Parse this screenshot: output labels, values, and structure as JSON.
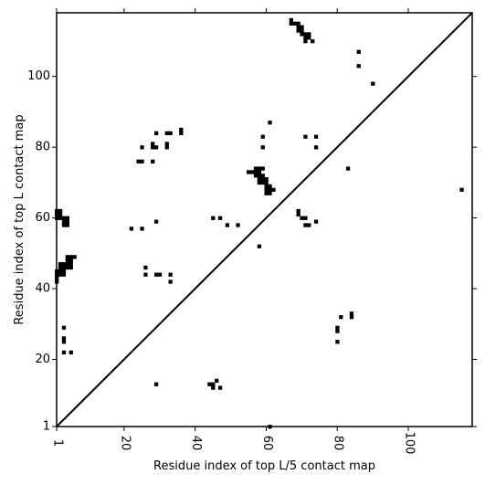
{
  "chart_data": {
    "type": "heatmap",
    "title": "",
    "xlabel": "Residue index of top L/5 contact map",
    "ylabel": "Residue index of top L contact map",
    "xlim": [
      1,
      118
    ],
    "ylim": [
      1,
      118
    ],
    "x_ticks": [
      1,
      20,
      40,
      60,
      80,
      100
    ],
    "y_ticks": [
      1,
      20,
      40,
      60,
      80,
      100
    ],
    "x_tick_labels": [
      "1",
      "20",
      "40",
      "60",
      "80",
      "100"
    ],
    "y_tick_labels": [
      "1",
      "20",
      "40",
      "60",
      "80",
      "100"
    ],
    "diagonal": true,
    "grid": false,
    "legend": "none",
    "cell_color": "#000000",
    "contacts": [
      [
        67,
        116
      ],
      [
        67,
        115
      ],
      [
        68,
        115
      ],
      [
        69,
        115
      ],
      [
        69,
        114
      ],
      [
        70,
        114
      ],
      [
        69,
        113
      ],
      [
        70,
        113
      ],
      [
        70,
        112
      ],
      [
        71,
        112
      ],
      [
        72,
        112
      ],
      [
        71,
        111
      ],
      [
        72,
        111
      ],
      [
        71,
        110
      ],
      [
        73,
        110
      ],
      [
        86,
        107
      ],
      [
        86,
        103
      ],
      [
        90,
        98
      ],
      [
        61,
        87
      ],
      [
        59,
        83
      ],
      [
        71,
        83
      ],
      [
        74,
        83
      ],
      [
        36,
        85
      ],
      [
        36,
        84
      ],
      [
        29,
        84
      ],
      [
        32,
        84
      ],
      [
        33,
        84
      ],
      [
        25,
        80
      ],
      [
        28,
        81
      ],
      [
        28,
        80
      ],
      [
        29,
        80
      ],
      [
        32,
        81
      ],
      [
        32,
        80
      ],
      [
        59,
        80
      ],
      [
        74,
        80
      ],
      [
        24,
        76
      ],
      [
        25,
        76
      ],
      [
        28,
        76
      ],
      [
        83,
        74
      ],
      [
        57,
        74
      ],
      [
        58,
        74
      ],
      [
        59,
        74
      ],
      [
        55,
        73
      ],
      [
        56,
        73
      ],
      [
        57,
        73
      ],
      [
        58,
        73
      ],
      [
        57,
        72
      ],
      [
        58,
        72
      ],
      [
        59,
        72
      ],
      [
        58,
        71
      ],
      [
        59,
        71
      ],
      [
        60,
        71
      ],
      [
        58,
        70
      ],
      [
        59,
        70
      ],
      [
        60,
        70
      ],
      [
        60,
        69
      ],
      [
        61,
        69
      ],
      [
        60,
        68
      ],
      [
        61,
        68
      ],
      [
        62,
        68
      ],
      [
        60,
        67
      ],
      [
        61,
        67
      ],
      [
        115,
        68
      ],
      [
        69,
        62
      ],
      [
        69,
        61
      ],
      [
        70,
        60
      ],
      [
        71,
        60
      ],
      [
        71,
        58
      ],
      [
        72,
        58
      ],
      [
        74,
        59
      ],
      [
        1,
        62
      ],
      [
        2,
        62
      ],
      [
        1,
        61
      ],
      [
        2,
        61
      ],
      [
        1,
        60
      ],
      [
        2,
        60
      ],
      [
        3,
        60
      ],
      [
        4,
        60
      ],
      [
        3,
        59
      ],
      [
        4,
        59
      ],
      [
        3,
        58
      ],
      [
        4,
        58
      ],
      [
        29,
        59
      ],
      [
        22,
        57
      ],
      [
        25,
        57
      ],
      [
        45,
        60
      ],
      [
        47,
        60
      ],
      [
        49,
        58
      ],
      [
        52,
        58
      ],
      [
        58,
        52
      ],
      [
        4,
        49
      ],
      [
        5,
        49
      ],
      [
        6,
        49
      ],
      [
        4,
        48
      ],
      [
        5,
        48
      ],
      [
        2,
        47
      ],
      [
        3,
        47
      ],
      [
        4,
        47
      ],
      [
        5,
        47
      ],
      [
        2,
        46
      ],
      [
        3,
        46
      ],
      [
        4,
        46
      ],
      [
        5,
        46
      ],
      [
        1,
        45
      ],
      [
        2,
        45
      ],
      [
        3,
        45
      ],
      [
        1,
        44
      ],
      [
        2,
        44
      ],
      [
        3,
        44
      ],
      [
        1,
        43
      ],
      [
        1,
        42
      ],
      [
        26,
        46
      ],
      [
        26,
        44
      ],
      [
        29,
        44
      ],
      [
        30,
        44
      ],
      [
        33,
        44
      ],
      [
        33,
        42
      ],
      [
        84,
        33
      ],
      [
        84,
        32
      ],
      [
        81,
        32
      ],
      [
        80,
        29
      ],
      [
        80,
        28
      ],
      [
        80,
        25
      ],
      [
        3,
        29
      ],
      [
        3,
        26
      ],
      [
        3,
        25
      ],
      [
        3,
        22
      ],
      [
        5,
        22
      ],
      [
        44,
        13
      ],
      [
        45,
        13
      ],
      [
        46,
        14
      ],
      [
        45,
        12
      ],
      [
        29,
        13
      ],
      [
        47,
        12
      ],
      [
        61,
        1
      ]
    ]
  }
}
